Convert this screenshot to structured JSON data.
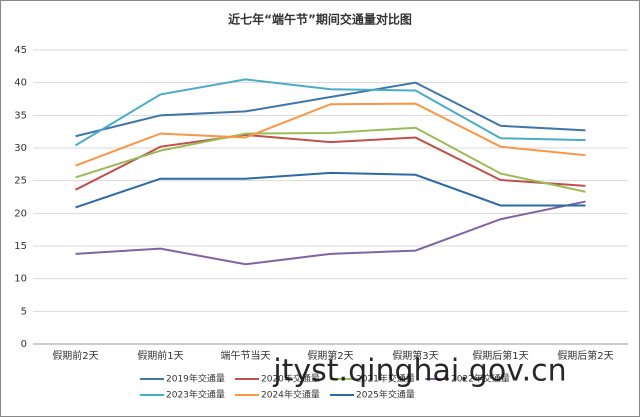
{
  "chart_data": {
    "type": "line",
    "title": "近七年“端午节”期间交通量对比图",
    "categories": [
      "假期前2天",
      "假期前1天",
      "端午节当天",
      "假期第2天",
      "假期第3天",
      "假期后第1天",
      "假期后第2天"
    ],
    "series": [
      {
        "name": "2019年交通量",
        "color": "#3f75a8",
        "values": [
          31.8,
          35.0,
          35.6,
          37.8,
          40.0,
          33.4,
          32.7
        ]
      },
      {
        "name": "2020年交通量",
        "color": "#c0504d",
        "values": [
          23.6,
          30.2,
          32.0,
          30.9,
          31.6,
          25.1,
          24.2
        ]
      },
      {
        "name": "2021年交通量",
        "color": "#9bbb59",
        "values": [
          25.5,
          29.6,
          32.2,
          32.3,
          33.1,
          26.1,
          23.3
        ]
      },
      {
        "name": "2022年交通量",
        "color": "#8064a2",
        "values": [
          13.8,
          14.6,
          12.2,
          13.8,
          14.3,
          19.1,
          21.8
        ]
      },
      {
        "name": "2023年交通量",
        "color": "#4bacc6",
        "values": [
          30.4,
          38.2,
          40.5,
          39.0,
          38.8,
          31.5,
          31.2
        ]
      },
      {
        "name": "2024年交通量",
        "color": "#f79646",
        "values": [
          27.3,
          32.2,
          31.6,
          36.7,
          36.8,
          30.2,
          28.9
        ]
      },
      {
        "name": "2025年交通量",
        "color": "#2e6aa6",
        "values": [
          20.9,
          25.3,
          25.3,
          26.2,
          25.9,
          21.2,
          21.2
        ]
      }
    ],
    "ylim": [
      0,
      45
    ],
    "yticks": [
      0,
      5,
      10,
      15,
      20,
      25,
      30,
      35,
      40,
      45
    ],
    "grid": true,
    "watermark": "jtyst.qinghai.gov.cn"
  }
}
